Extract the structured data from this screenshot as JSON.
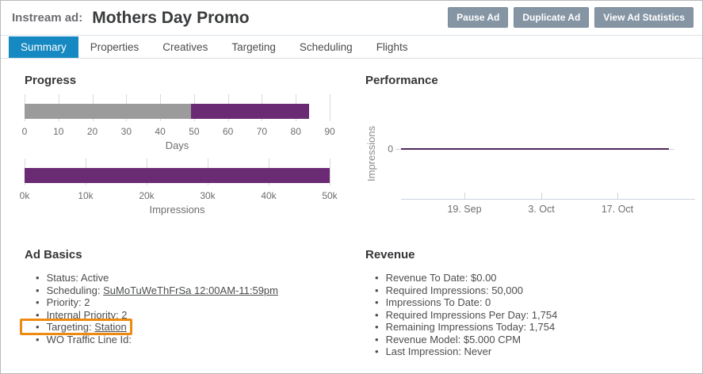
{
  "colors": {
    "tab_active": "#1789c2",
    "button_gray": "#8595a4",
    "button_border": "#7b8c9c",
    "bar_gray": "#9b9b9b",
    "bar_purple": "#6b2b74",
    "line_purple": "#53285c",
    "highlight_orange": "#ee8a11",
    "axis_light": "#ccd6dd"
  },
  "header": {
    "kicker": "Instream ad:",
    "title": "Mothers Day Promo",
    "buttons": [
      {
        "label": "Pause Ad",
        "name": "pause-ad-button"
      },
      {
        "label": "Duplicate Ad",
        "name": "duplicate-ad-button"
      },
      {
        "label": "View Ad Statistics",
        "name": "view-ad-statistics-button"
      }
    ]
  },
  "tabs": [
    {
      "label": "Summary",
      "name": "tab-summary",
      "active": true
    },
    {
      "label": "Properties",
      "name": "tab-properties"
    },
    {
      "label": "Creatives",
      "name": "tab-creatives"
    },
    {
      "label": "Targeting",
      "name": "tab-targeting"
    },
    {
      "label": "Scheduling",
      "name": "tab-scheduling"
    },
    {
      "label": "Flights",
      "name": "tab-flights"
    }
  ],
  "progress": {
    "heading": "Progress",
    "days": {
      "axis_label": "Days",
      "max": 90,
      "ticks": [
        "0",
        "10",
        "20",
        "30",
        "40",
        "50",
        "60",
        "70",
        "80",
        "90"
      ],
      "segments": [
        {
          "name": "days-elapsed-segment",
          "from": 0,
          "to": 49,
          "color": "#9b9b9b"
        },
        {
          "name": "days-remaining-segment",
          "from": 49,
          "to": 84,
          "color": "#6b2b74"
        }
      ]
    },
    "impressions": {
      "axis_label": "Impressions",
      "max": 50000,
      "ticks": [
        "0k",
        "10k",
        "20k",
        "30k",
        "40k",
        "50k"
      ],
      "segments": [
        {
          "name": "impressions-goal-segment",
          "from": 0,
          "to": 50000,
          "color": "#6b2b74"
        }
      ]
    }
  },
  "performance": {
    "heading": "Performance",
    "ylabel": "Impressions",
    "ytick": "0",
    "xticks": [
      "19. Sep",
      "3. Oct",
      "17. Oct"
    ]
  },
  "ad_basics": {
    "heading": "Ad Basics",
    "items": [
      {
        "label": "Status: Active",
        "name": "status-item"
      },
      {
        "label": "Scheduling: ",
        "link": "SuMoTuWeThFrSa 12:00AM-11:59pm",
        "name": "scheduling-item"
      },
      {
        "label": "Priority: 2",
        "name": "priority-item"
      },
      {
        "label": "Internal Priority: 2",
        "name": "internal-priority-item"
      },
      {
        "label": "Targeting: ",
        "link": "Station",
        "highlighted": true,
        "name": "targeting-item"
      },
      {
        "label": "WO Traffic Line Id:",
        "name": "wo-traffic-line-id-item"
      }
    ]
  },
  "revenue": {
    "heading": "Revenue",
    "items": [
      {
        "label": "Revenue To Date: $0.00",
        "name": "revenue-to-date-item"
      },
      {
        "label": "Required Impressions: 50,000",
        "name": "required-impressions-item"
      },
      {
        "label": "Impressions To Date: 0",
        "name": "impressions-to-date-item"
      },
      {
        "label": "Required Impressions Per Day: 1,754",
        "name": "required-impressions-per-day-item"
      },
      {
        "label": "Remaining Impressions Today: 1,754",
        "name": "remaining-impressions-today-item"
      },
      {
        "label": "Revenue Model: $5.000 CPM",
        "name": "revenue-model-item"
      },
      {
        "label": "Last Impression: Never",
        "name": "last-impression-item"
      }
    ]
  },
  "chart_data": [
    {
      "type": "bar",
      "title": "Progress — Days",
      "xlabel": "Days",
      "xlim": [
        0,
        90
      ],
      "ticks": [
        0,
        10,
        20,
        30,
        40,
        50,
        60,
        70,
        80,
        90
      ],
      "segments": [
        {
          "name": "elapsed (gray)",
          "from": 0,
          "to": 49
        },
        {
          "name": "remaining (purple)",
          "from": 49,
          "to": 84
        }
      ]
    },
    {
      "type": "bar",
      "title": "Progress — Impressions",
      "xlabel": "Impressions",
      "xlim": [
        0,
        50000
      ],
      "ticks": [
        0,
        10000,
        20000,
        30000,
        40000,
        50000
      ],
      "segments": [
        {
          "name": "required impressions (purple)",
          "from": 0,
          "to": 50000
        }
      ]
    },
    {
      "type": "line",
      "title": "Performance",
      "ylabel": "Impressions",
      "x": [
        "19. Sep",
        "3. Oct",
        "17. Oct"
      ],
      "series": [
        {
          "name": "Impressions",
          "values": [
            0,
            0,
            0
          ]
        }
      ],
      "yticks": [
        0
      ],
      "grid": false,
      "legend": false
    }
  ]
}
